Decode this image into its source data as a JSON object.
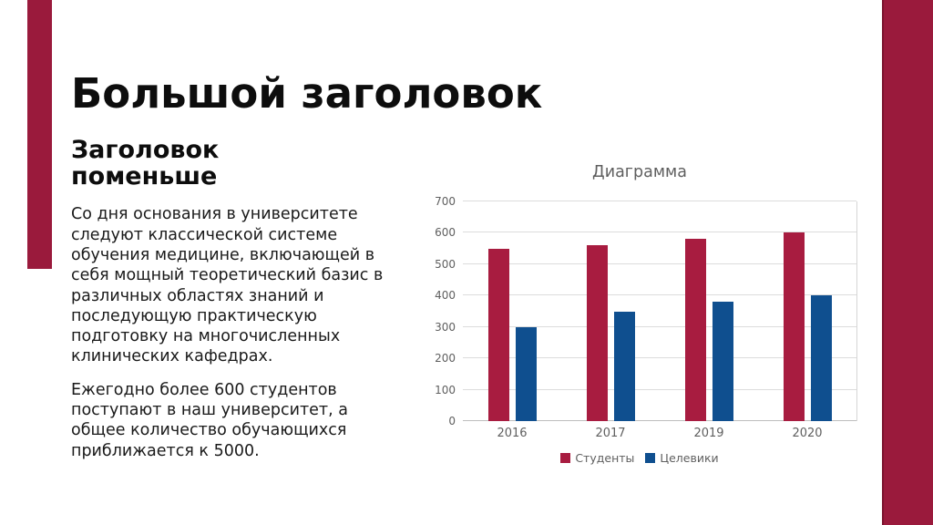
{
  "slide": {
    "title": "Большой заголовок",
    "subtitle": "Заголовок\nпоменьше",
    "paragraphs": [
      "Со дня основания в университете следуют классической системе обучения медицине, включающей в себя мощный теоретический базис в различных областях знаний и последующую практическую подготовку на многочисленных клинических кафедрах.",
      "Ежегодно более 600 студентов поступают в наш университет, а общее количество обучающихся приближается к 5000."
    ]
  },
  "chart_data": {
    "type": "bar",
    "title": "Диаграмма",
    "categories": [
      "2016",
      "2017",
      "2019",
      "2020"
    ],
    "series": [
      {
        "name": "Студенты",
        "color": "#A81C40",
        "values": [
          550,
          560,
          580,
          600
        ]
      },
      {
        "name": "Целевики",
        "color": "#0F4F8F",
        "values": [
          300,
          350,
          380,
          400
        ]
      }
    ],
    "ylim": [
      0,
      700
    ],
    "yticks": [
      0,
      100,
      200,
      300,
      400,
      500,
      600,
      700
    ],
    "grid": true,
    "legend_position": "bottom"
  },
  "colors": {
    "accent_panel": "#9A1A3C",
    "accent_panel_edge": "#7C142F",
    "series_red": "#A81C40",
    "series_blue": "#0F4F8F",
    "axis_text": "#5F5F5F",
    "gridline": "#DCDCDC"
  }
}
